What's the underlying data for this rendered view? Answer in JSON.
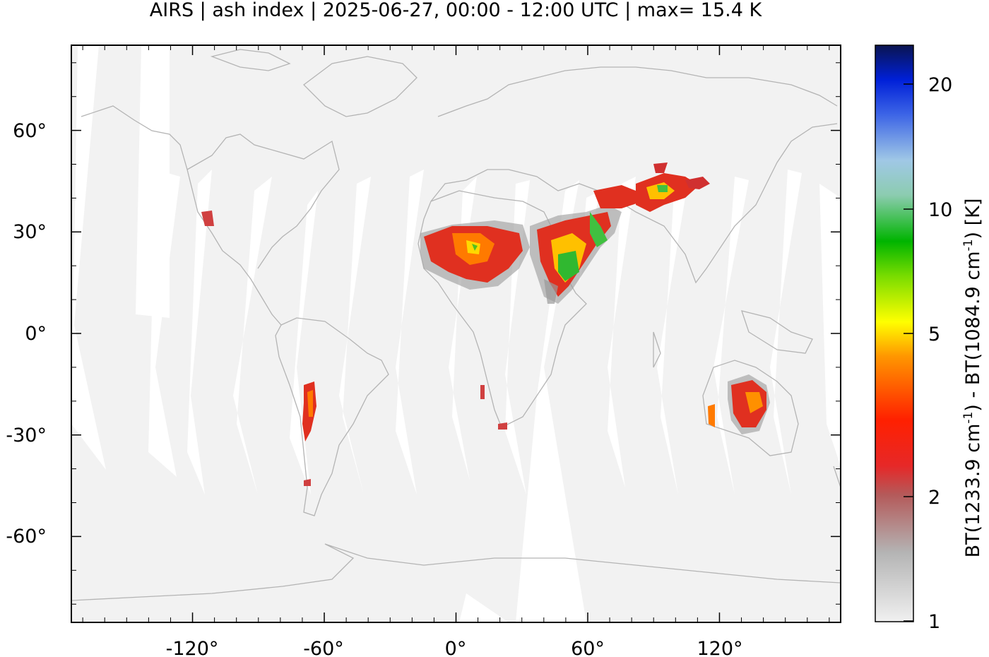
{
  "title": "AIRS | ash index | 2025-06-27, 00:00 - 12:00 UTC | max= 15.4 K",
  "map": {
    "lon_labels": [
      "-120°",
      "-60°",
      "0°",
      "60°",
      "120°"
    ],
    "lat_labels": [
      "60°",
      "30°",
      "0°",
      "-30°",
      "-60°"
    ],
    "no_data_color": "#ffffff",
    "background_color": "#f2f2f2",
    "coastline_color": "#b4b4b4"
  },
  "colorbar": {
    "tick_labels": [
      "20",
      "10",
      "5",
      "2",
      "1"
    ],
    "axis_label_parts": [
      "BT(1233.9 cm",
      "-1",
      ") - BT(1084.9 cm",
      "-1",
      ") [K]"
    ],
    "scale": "log",
    "range": [
      1,
      22.5
    ],
    "stops": [
      "#dcdcdc",
      "#a0a0a0",
      "#d24646",
      "#ff0000",
      "#ff7800",
      "#ffff00",
      "#00b400",
      "#8ccca8",
      "#5080e6",
      "#0020d8",
      "#0a1450"
    ]
  }
}
